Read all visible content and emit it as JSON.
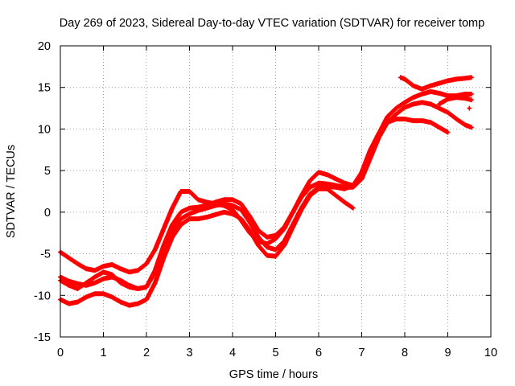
{
  "chart_data": {
    "type": "scatter",
    "title": "Day 269 of 2023, Sidereal Day-to-day VTEC variation (SDTVAR) for receiver tomp",
    "xlabel": "GPS time / hours",
    "ylabel": "SDTVAR / TECUs",
    "xlim": [
      0,
      10
    ],
    "ylim": [
      -15,
      20
    ],
    "x_ticks": [
      0,
      1,
      2,
      3,
      4,
      5,
      6,
      7,
      8,
      9,
      10
    ],
    "y_ticks": [
      -15,
      -10,
      -5,
      0,
      5,
      10,
      15,
      20
    ],
    "grid": true,
    "grid_style": "dotted",
    "marker": "+",
    "series_color": "#ff0000",
    "series": [
      {
        "x": [
          0.0,
          0.2,
          0.4,
          0.6,
          0.8,
          1.0,
          1.2,
          1.4,
          1.6,
          1.8,
          2.0,
          2.2,
          2.4,
          2.6,
          2.8,
          3.0,
          3.2,
          3.4,
          3.6,
          3.8,
          4.0,
          4.2,
          4.4,
          4.6,
          4.8,
          5.0,
          5.2,
          5.4,
          5.6,
          5.8,
          6.0,
          6.2,
          6.4,
          6.6,
          6.8,
          7.0,
          7.2,
          7.4,
          7.6,
          7.8,
          8.0,
          8.2,
          8.4,
          8.6,
          8.8,
          9.0,
          9.2,
          9.4,
          9.55
        ],
        "y": [
          -4.8,
          -5.5,
          -6.2,
          -6.8,
          -7.0,
          -6.5,
          -6.3,
          -6.8,
          -7.2,
          -7.0,
          -6.2,
          -4.5,
          -2.0,
          0.5,
          2.5,
          2.5,
          1.5,
          1.2,
          1.0,
          0.8,
          0.3,
          -1.0,
          -2.5,
          -3.5,
          -3.8,
          -3.2,
          -2.0,
          0.0,
          2.0,
          3.8,
          4.8,
          4.5,
          4.0,
          3.5,
          3.2,
          4.5,
          7.0,
          9.5,
          11.5,
          12.5,
          13.2,
          13.8,
          14.2,
          14.5,
          14.3,
          14.0,
          14.0,
          14.2,
          14.2
        ]
      },
      {
        "x": [
          0.0,
          0.2,
          0.4,
          0.6,
          0.8,
          1.0,
          1.2,
          1.4,
          1.6,
          1.8,
          2.0,
          2.2,
          2.4,
          2.6,
          2.8,
          3.0,
          3.2,
          3.4,
          3.6,
          3.8,
          4.0,
          4.2,
          4.4,
          4.6,
          4.8,
          5.0,
          5.2,
          5.4,
          5.6,
          5.8,
          6.0,
          6.2,
          6.4,
          6.6,
          6.8,
          7.0,
          7.2,
          7.4,
          7.6,
          7.8,
          8.0,
          8.2,
          8.4,
          8.6,
          8.8,
          9.0,
          9.2,
          9.4,
          9.55
        ],
        "y": [
          -7.8,
          -8.3,
          -8.6,
          -8.8,
          -8.5,
          -8.0,
          -7.8,
          -8.2,
          -8.8,
          -9.2,
          -9.0,
          -7.0,
          -4.0,
          -1.5,
          0.0,
          0.5,
          0.6,
          0.8,
          1.2,
          1.5,
          1.5,
          1.0,
          -0.5,
          -2.2,
          -3.0,
          -2.8,
          -1.8,
          0.0,
          1.8,
          3.0,
          3.5,
          3.4,
          3.2,
          3.0,
          3.0,
          4.0,
          6.5,
          9.0,
          10.8,
          11.8,
          12.6,
          13.0,
          13.2,
          13.0,
          12.5,
          12.0,
          11.2,
          10.5,
          10.2
        ]
      },
      {
        "x": [
          0.0,
          0.2,
          0.4,
          0.6,
          0.8,
          1.0,
          1.2,
          1.4,
          1.6,
          1.8,
          2.0,
          2.2,
          2.4,
          2.6,
          2.8,
          3.0,
          3.2,
          3.4,
          3.6,
          3.8,
          4.0,
          4.2,
          4.4,
          4.6,
          4.8,
          5.0,
          5.2,
          5.4,
          5.6,
          5.8,
          6.0,
          6.2,
          6.4,
          6.6,
          6.8
        ],
        "y": [
          -10.5,
          -11.0,
          -10.8,
          -10.2,
          -9.8,
          -9.8,
          -10.2,
          -10.8,
          -11.2,
          -11.0,
          -10.5,
          -8.5,
          -5.5,
          -3.0,
          -1.5,
          -0.8,
          -0.8,
          -0.6,
          -0.3,
          0.0,
          -0.2,
          -0.8,
          -2.2,
          -4.0,
          -5.2,
          -5.3,
          -4.0,
          -1.8,
          0.3,
          2.0,
          2.8,
          2.8,
          2.0,
          1.2,
          0.5
        ]
      },
      {
        "x": [
          0.0,
          0.2,
          0.4,
          0.6,
          0.8,
          1.0,
          1.2,
          1.4,
          1.6,
          1.8,
          2.0,
          2.2,
          2.4,
          2.6,
          2.8,
          3.0,
          3.2,
          3.4,
          3.6,
          3.8,
          4.0,
          4.2,
          4.4,
          4.6,
          4.8,
          5.0,
          5.2,
          5.4,
          5.6,
          5.8,
          6.0,
          6.2,
          6.4,
          6.6,
          6.8,
          7.0,
          7.2,
          7.4,
          7.6,
          7.8,
          8.0,
          8.2,
          8.4,
          8.6,
          8.8,
          9.0
        ],
        "y": [
          -8.2,
          -8.8,
          -9.2,
          -8.5,
          -7.8,
          -7.2,
          -7.5,
          -8.5,
          -9.0,
          -9.2,
          -9.0,
          -7.2,
          -4.5,
          -2.2,
          -0.8,
          -0.2,
          0.2,
          0.5,
          0.8,
          1.0,
          0.8,
          0.3,
          -1.2,
          -3.0,
          -4.2,
          -4.5,
          -3.5,
          -1.5,
          0.5,
          2.2,
          3.0,
          3.1,
          3.0,
          2.8,
          3.2,
          4.8,
          7.5,
          9.5,
          10.8,
          11.2,
          11.2,
          11.0,
          11.0,
          10.8,
          10.2,
          9.6
        ]
      },
      {
        "x": [
          7.9,
          8.0,
          8.2,
          8.4,
          8.6,
          8.8,
          9.0,
          9.2,
          9.4,
          9.55
        ],
        "y": [
          16.2,
          16.0,
          15.2,
          14.8,
          15.2,
          15.5,
          15.8,
          16.0,
          16.1,
          16.2
        ]
      },
      {
        "x": [
          8.8,
          9.0,
          9.2,
          9.4,
          9.55
        ],
        "y": [
          13.0,
          13.6,
          13.8,
          13.7,
          13.5
        ]
      },
      {
        "x": [
          9.5
        ],
        "y": [
          12.5
        ]
      }
    ]
  }
}
